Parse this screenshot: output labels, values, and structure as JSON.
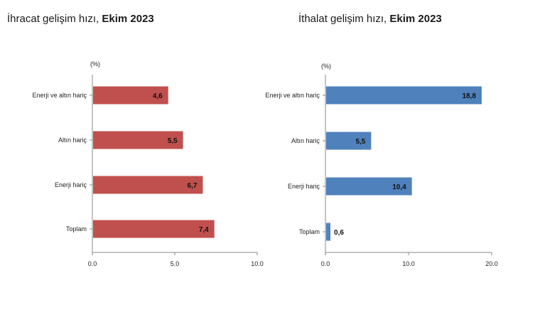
{
  "titles": {
    "left": {
      "main": "İhracat gelişim hızı, ",
      "date": "Ekim 2023"
    },
    "right": {
      "main": "İthalat gelişim hızı, ",
      "date": "Ekim 2023"
    }
  },
  "chart_data": [
    {
      "type": "bar",
      "orientation": "horizontal",
      "title": "İhracat gelişim hızı, Ekim 2023",
      "unit_label": "(%)",
      "categories": [
        "Enerji ve altın hariç",
        "Altın hariç",
        "Enerji hariç",
        "Toplam"
      ],
      "values": [
        4.6,
        5.5,
        6.7,
        7.4
      ],
      "value_labels": [
        "4,6",
        "5,5",
        "6,7",
        "7,4"
      ],
      "xlim": [
        0,
        10
      ],
      "ticks": [
        "0.0",
        "5.0",
        "10.0"
      ],
      "bar_color": "#c0504d",
      "grid": false
    },
    {
      "type": "bar",
      "orientation": "horizontal",
      "title": "İthalat gelişim hızı, Ekim 2023",
      "unit_label": "(%)",
      "categories": [
        "Enerji ve altın hariç",
        "Altın hariç",
        "Enerji hariç",
        "Toplam"
      ],
      "values": [
        18.8,
        5.5,
        10.4,
        0.6
      ],
      "value_labels": [
        "18,8",
        "5,5",
        "10,4",
        "0,6"
      ],
      "xlim": [
        0,
        20
      ],
      "ticks": [
        "0.0",
        "10.0",
        "20.0"
      ],
      "bar_color": "#4f81bd",
      "grid": false
    }
  ]
}
